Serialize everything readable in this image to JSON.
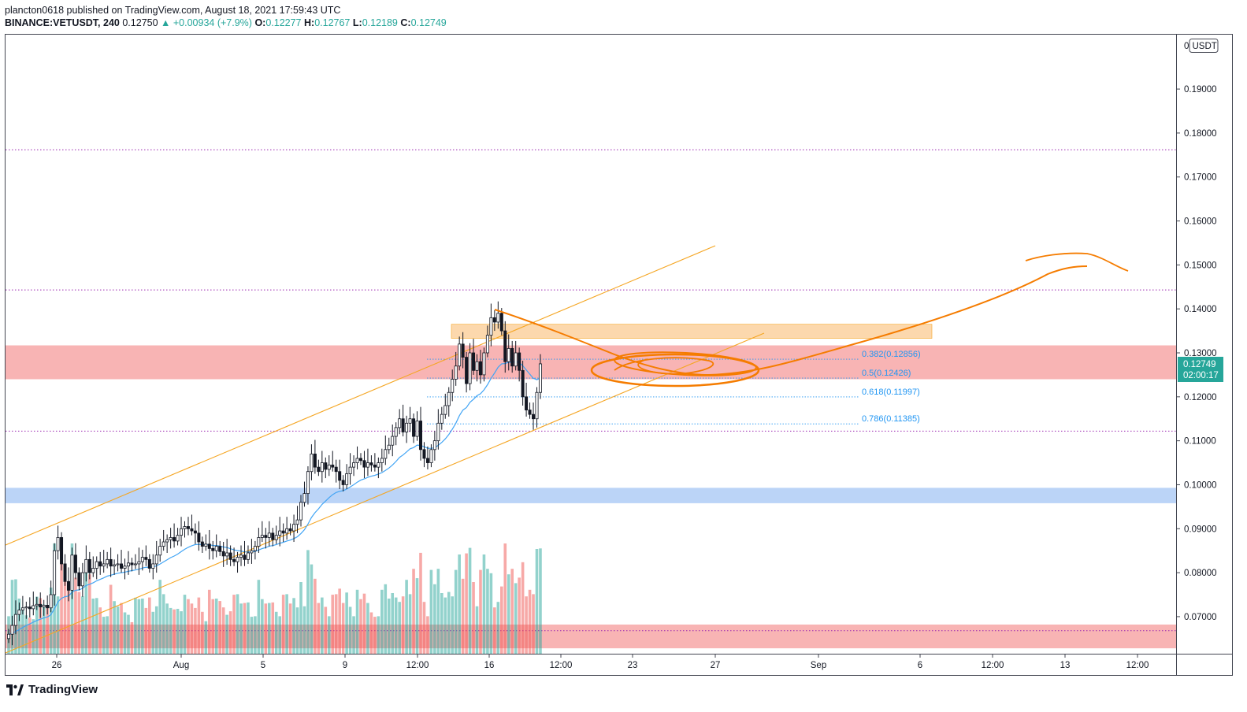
{
  "header": {
    "line1": "plancton0618 published on TradingView.com, August 18, 2021 17:59:43 UTC",
    "symbol": "BINANCE:VETUSDT, 240",
    "last": "0.12750",
    "change": "▲ +0.00934 (+7.9%)",
    "o_label": "O:",
    "o_value": "0.12277",
    "h_label": "H:",
    "h_value": "0.12767",
    "l_label": "L:",
    "l_value": "0.12189",
    "c_label": "C:",
    "c_value": "0.12749"
  },
  "price_scale": {
    "currency": "USDT",
    "currency_prefix": "0",
    "current_price": "0.12749",
    "countdown": "02:00:17"
  },
  "footer": {
    "brand": "TradingView"
  },
  "colors": {
    "up": "#26a69a",
    "down": "#ef5350",
    "channel": "#f5a623",
    "drawing": "#f57c00",
    "fib": "#2196f3",
    "ema": "#42a5f5",
    "level": "#9c27b0",
    "resistance_zone": "#f8b4b4",
    "support_zone": "#bbd4f7",
    "supply_zone": "#fcd8ad"
  },
  "chart_data": {
    "type": "candlestick",
    "y_ticks": [
      "0.19000",
      "0.18000",
      "0.17000",
      "0.16000",
      "0.15000",
      "0.14000",
      "0.13000",
      "0.12000",
      "0.11000",
      "0.10000",
      "0.09000",
      "0.08000",
      "0.07000"
    ],
    "ylim": [
      0.0628,
      0.2025
    ],
    "x_ticks": [
      "26",
      "Aug",
      "5",
      "9",
      "12:00",
      "16",
      "12:00",
      "23",
      "27",
      "Sep",
      "6",
      "12:00",
      "13",
      "12:00"
    ],
    "horizontal_levels": [
      0.1762,
      0.1443,
      0.1122,
      0.0668
    ],
    "zones": [
      {
        "kind": "resistance",
        "from": 0.124,
        "to": 0.1317
      },
      {
        "kind": "support",
        "from": 0.0958,
        "to": 0.0993
      },
      {
        "kind": "support_low",
        "from": 0.0628,
        "to": 0.0682
      },
      {
        "kind": "supply",
        "from": 0.1333,
        "to": 0.1365
      }
    ],
    "fib_levels": [
      {
        "ratio": "0.382",
        "label": "0.382(0.12856)",
        "value": 0.12856
      },
      {
        "ratio": "0.5",
        "label": "0.5(0.12426)",
        "value": 0.12426
      },
      {
        "ratio": "0.618",
        "label": "0.618(0.11997)",
        "value": 0.11997
      },
      {
        "ratio": "0.786",
        "label": "0.786(0.11385)",
        "value": 0.11385
      }
    ],
    "candles_closes": [
      0.066,
      0.068,
      0.0705,
      0.0715,
      0.072,
      0.0722,
      0.0718,
      0.0725,
      0.0728,
      0.0722,
      0.0726,
      0.072,
      0.075,
      0.085,
      0.088,
      0.082,
      0.078,
      0.076,
      0.084,
      0.08,
      0.077,
      0.08,
      0.083,
      0.08,
      0.081,
      0.0825,
      0.0815,
      0.082,
      0.083,
      0.0815,
      0.0818,
      0.082,
      0.081,
      0.0815,
      0.0822,
      0.0818,
      0.082,
      0.0825,
      0.0835,
      0.083,
      0.081,
      0.082,
      0.084,
      0.086,
      0.087,
      0.0875,
      0.088,
      0.0872,
      0.0885,
      0.09,
      0.0905,
      0.09,
      0.0895,
      0.089,
      0.087,
      0.086,
      0.0865,
      0.0855,
      0.085,
      0.086,
      0.0848,
      0.0838,
      0.0845,
      0.083,
      0.0825,
      0.0835,
      0.084,
      0.083,
      0.0845,
      0.085,
      0.086,
      0.088,
      0.0885,
      0.088,
      0.089,
      0.0875,
      0.0885,
      0.0895,
      0.089,
      0.09,
      0.0895,
      0.091,
      0.092,
      0.096,
      0.098,
      0.103,
      0.107,
      0.104,
      0.103,
      0.105,
      0.1035,
      0.1045,
      0.104,
      0.103,
      0.101,
      0.1,
      0.1025,
      0.104,
      0.105,
      0.106,
      0.1055,
      0.104,
      0.105,
      0.1045,
      0.104,
      0.105,
      0.106,
      0.108,
      0.109,
      0.111,
      0.113,
      0.115,
      0.112,
      0.114,
      0.115,
      0.111,
      0.1145,
      0.108,
      0.106,
      0.105,
      0.108,
      0.11,
      0.114,
      0.116,
      0.118,
      0.121,
      0.124,
      0.127,
      0.132,
      0.129,
      0.123,
      0.13,
      0.126,
      0.128,
      0.125,
      0.13,
      0.134,
      0.138,
      0.137,
      0.139,
      0.135,
      0.128,
      0.131,
      0.127,
      0.13,
      0.126,
      0.12,
      0.117,
      0.116,
      0.115,
      0.121,
      0.1275
    ],
    "volume_scale_max": 1.0,
    "annotations": [
      "ascending channel",
      "projected path",
      "target arc",
      "circled zone"
    ]
  }
}
